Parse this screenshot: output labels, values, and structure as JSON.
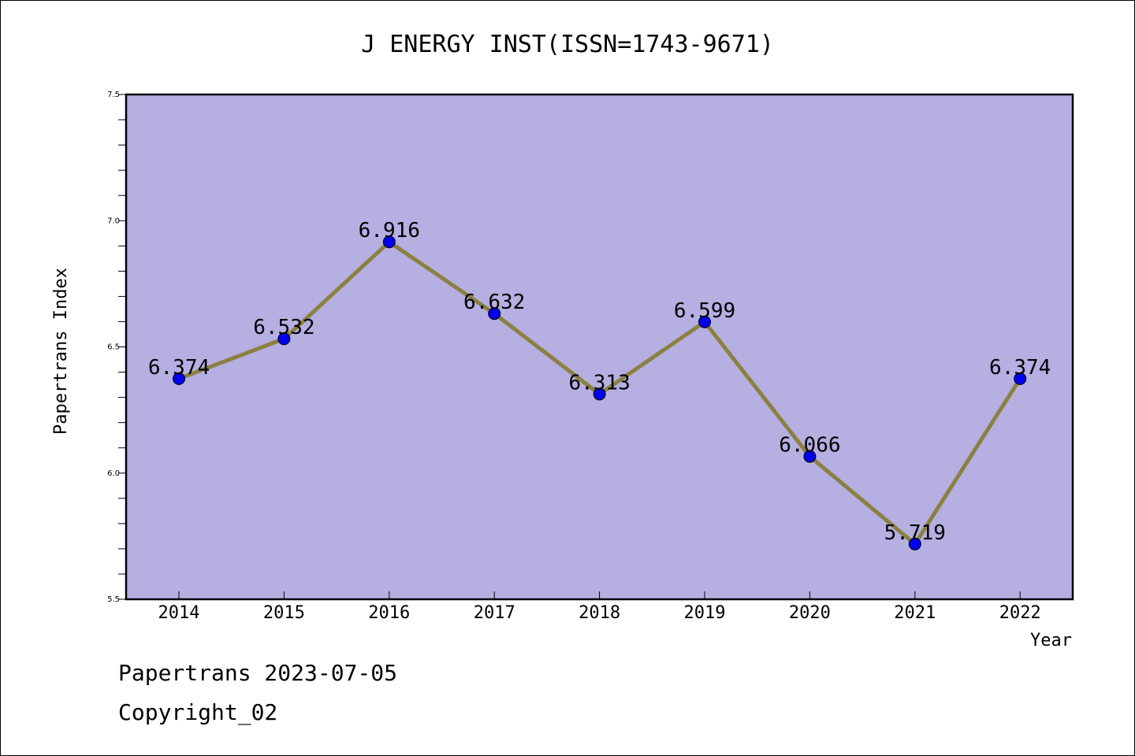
{
  "chart_data": {
    "type": "line",
    "title": "J ENERGY INST(ISSN=1743-9671)",
    "xlabel": "Year",
    "ylabel": "Papertrans Index",
    "categories": [
      "2014",
      "2015",
      "2016",
      "2017",
      "2018",
      "2019",
      "2020",
      "2021",
      "2022"
    ],
    "values": [
      6.374,
      6.532,
      6.916,
      6.632,
      6.313,
      6.599,
      6.066,
      5.719,
      6.374
    ],
    "data_labels": [
      "6.374",
      "6.532",
      "6.916",
      "6.632",
      "6.313",
      "6.599",
      "6.066",
      "5.719",
      "6.374"
    ],
    "ylim": [
      5.5,
      7.5
    ],
    "yticks": [
      "5.5",
      "6.0",
      "6.5",
      "7.0",
      "7.5"
    ],
    "grid": false,
    "colors": {
      "plot_background": "#b5afe2",
      "line": "#8b8040",
      "marker": "#0000ee"
    }
  },
  "footer": {
    "line1": "Papertrans 2023-07-05",
    "line2": "Copyright_02"
  }
}
